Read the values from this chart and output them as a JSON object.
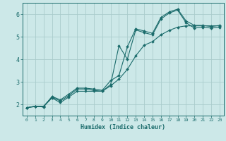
{
  "title": "",
  "xlabel": "Humidex (Indice chaleur)",
  "ylabel": "",
  "bg_color": "#cce8e8",
  "grid_color": "#aacccc",
  "line_color": "#1a6b6b",
  "marker_color": "#1a6b6b",
  "xlim": [
    -0.5,
    23.5
  ],
  "ylim": [
    1.5,
    6.5
  ],
  "yticks": [
    2,
    3,
    4,
    5,
    6
  ],
  "xticks": [
    0,
    1,
    2,
    3,
    4,
    5,
    6,
    7,
    8,
    9,
    10,
    11,
    12,
    13,
    14,
    15,
    16,
    17,
    18,
    19,
    20,
    21,
    22,
    23
  ],
  "series1_x": [
    0,
    1,
    2,
    3,
    4,
    5,
    6,
    7,
    8,
    9,
    10,
    11,
    12,
    13,
    14,
    15,
    16,
    17,
    18,
    19,
    20,
    21,
    22,
    23
  ],
  "series1_y": [
    1.85,
    1.92,
    1.88,
    2.35,
    2.2,
    2.45,
    2.72,
    2.72,
    2.68,
    2.62,
    3.05,
    3.28,
    4.55,
    5.35,
    5.25,
    5.15,
    5.85,
    6.1,
    6.22,
    5.7,
    5.5,
    5.5,
    5.45,
    5.5
  ],
  "series2_x": [
    0,
    1,
    2,
    3,
    4,
    5,
    6,
    7,
    8,
    9,
    10,
    11,
    12,
    13,
    14,
    15,
    16,
    17,
    18,
    19,
    20,
    21,
    22,
    23
  ],
  "series2_y": [
    1.85,
    1.92,
    1.92,
    2.32,
    2.15,
    2.38,
    2.68,
    2.68,
    2.62,
    2.58,
    2.88,
    4.6,
    4.0,
    5.3,
    5.18,
    5.08,
    5.78,
    6.05,
    6.18,
    5.62,
    5.38,
    5.42,
    5.38,
    5.42
  ],
  "series3_x": [
    0,
    1,
    2,
    3,
    4,
    5,
    6,
    7,
    8,
    9,
    10,
    11,
    12,
    13,
    14,
    15,
    16,
    17,
    18,
    19,
    20,
    21,
    22,
    23
  ],
  "series3_y": [
    1.85,
    1.9,
    1.9,
    2.28,
    2.08,
    2.32,
    2.58,
    2.58,
    2.58,
    2.58,
    2.82,
    3.12,
    3.55,
    4.15,
    4.62,
    4.78,
    5.08,
    5.28,
    5.42,
    5.48,
    5.48,
    5.48,
    5.48,
    5.48
  ]
}
